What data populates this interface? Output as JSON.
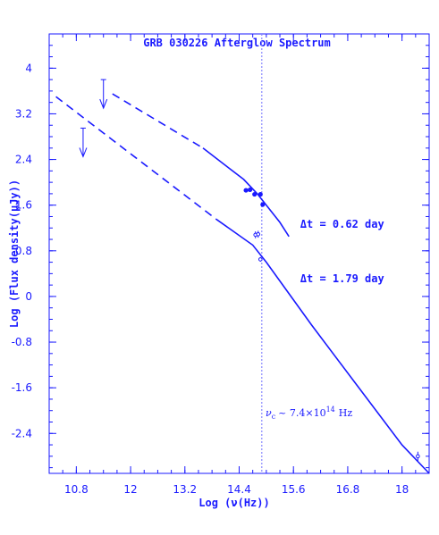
{
  "chart_data": {
    "type": "line",
    "title": "GRB 030226 Afterglow Spectrum",
    "xlabel": "Log (ν(Hz))",
    "ylabel": "Log (Flux density(μJy))",
    "xlim": [
      10.2,
      18.6
    ],
    "ylim": [
      -3.1,
      4.6
    ],
    "x_ticks": [
      "10.8",
      "12",
      "13.2",
      "14.4",
      "15.6",
      "16.8",
      "18"
    ],
    "x_tick_values": [
      10.8,
      12,
      13.2,
      14.4,
      15.6,
      16.8,
      18
    ],
    "y_ticks": [
      "4",
      "3.2",
      "2.4",
      "1.6",
      "0.8",
      "0",
      "-0.8",
      "-1.6",
      "-2.4"
    ],
    "y_tick_values": [
      4,
      3.2,
      2.4,
      1.6,
      0.8,
      0,
      -0.8,
      -1.6,
      -2.4
    ],
    "cooling_break_x": 14.9,
    "cooling_break_label": "ν c ~ 7.4×10¹⁴ Hz",
    "cooling_break_label_parts": {
      "nu": "ν",
      "sub": "c",
      "rest": "~ 7.4×10",
      "exp": "14",
      "unit": "Hz"
    },
    "grid": false,
    "color": "#1a1aff",
    "series": [
      {
        "name": "Δt = 0.62 day",
        "label_anchor": [
          15.75,
          1.2
        ],
        "dashed": [
          [
            11.6,
            3.55
          ],
          [
            13.6,
            2.6
          ]
        ],
        "solid": [
          [
            13.6,
            2.6
          ],
          [
            14.5,
            2.05
          ],
          [
            14.8,
            1.8
          ],
          [
            15.3,
            1.3
          ],
          [
            15.5,
            1.05
          ]
        ],
        "points": [
          {
            "x": 14.55,
            "y": 1.86,
            "err": 0.03
          },
          {
            "x": 14.64,
            "y": 1.87,
            "err": 0.03
          },
          {
            "x": 14.74,
            "y": 1.79,
            "err": 0.03
          },
          {
            "x": 14.87,
            "y": 1.79,
            "err": 0.04
          },
          {
            "x": 14.92,
            "y": 1.61,
            "err": 0.04
          }
        ],
        "upper_limit": {
          "x": 11.4,
          "y": 3.8
        }
      },
      {
        "name": "Δt = 1.79 day",
        "label_anchor": [
          15.75,
          0.25
        ],
        "dashed": [
          [
            10.35,
            3.5
          ],
          [
            13.9,
            1.35
          ]
        ],
        "solid": [
          [
            13.9,
            1.35
          ],
          [
            14.7,
            0.9
          ],
          [
            15.0,
            0.6
          ],
          [
            16.0,
            -0.5
          ],
          [
            17.0,
            -1.55
          ],
          [
            18.0,
            -2.6
          ],
          [
            18.6,
            -3.1
          ]
        ],
        "points": [
          {
            "x": 14.76,
            "y": 1.08,
            "err": 0.06
          },
          {
            "x": 14.82,
            "y": 1.09,
            "err": 0.06
          },
          {
            "x": 14.87,
            "y": 0.65,
            "err": 0.04
          },
          {
            "x": 18.35,
            "y": -2.8,
            "err": 0.08
          }
        ],
        "upper_limit": {
          "x": 10.95,
          "y": 2.95
        }
      }
    ]
  }
}
